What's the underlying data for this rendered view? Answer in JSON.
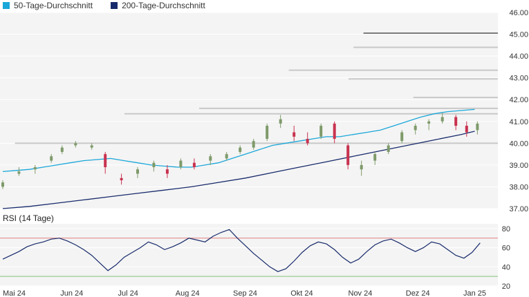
{
  "legend": {
    "ma50_label": "50-Tage-Durchschnitt",
    "ma200_label": "200-Tage-Durchschnitt"
  },
  "colors": {
    "ma50": "#1aa7d9",
    "ma200": "#172a6b",
    "up": "#7e9a6a",
    "down": "#c8324f",
    "rsi_line": "#172a6b",
    "rsi_upper": "#e07b7b",
    "rsi_lower": "#86c27a",
    "resistance": "#c8c8c8",
    "top_line": "#000000"
  },
  "rsi": {
    "title": "RSI (14 Tage)"
  },
  "chart_data": {
    "type": "candlestick",
    "price_axis": {
      "ylim": [
        37.0,
        46.0
      ],
      "ticks": [
        "37.00",
        "38.00",
        "39.00",
        "40.00",
        "41.00",
        "42.00",
        "43.00",
        "44.00",
        "45.00",
        "46.00"
      ]
    },
    "rsi_axis": {
      "ylim": [
        20,
        85
      ],
      "ticks": [
        "20",
        "40",
        "60",
        "80"
      ],
      "upper_level": 70,
      "lower_level": 30
    },
    "x_labels": [
      "Mai 24",
      "Jun 24",
      "Jul 24",
      "Aug 24",
      "Sep 24",
      "Okt 24",
      "Nov 24",
      "Dez 24",
      "Jan 25"
    ],
    "n_days": 180,
    "candles": [
      [
        0,
        38.0,
        38.3,
        37.9,
        38.2
      ],
      [
        6,
        38.6,
        38.9,
        38.5,
        38.7
      ],
      [
        12,
        38.8,
        39.0,
        38.6,
        38.9
      ],
      [
        18,
        39.2,
        39.5,
        39.1,
        39.4
      ],
      [
        22,
        39.6,
        39.9,
        39.5,
        39.8
      ],
      [
        27,
        39.9,
        40.1,
        39.8,
        40.0
      ],
      [
        33,
        39.8,
        40.0,
        39.7,
        39.9
      ],
      [
        38,
        39.5,
        39.6,
        38.6,
        38.9
      ],
      [
        44,
        38.4,
        38.6,
        38.1,
        38.3
      ],
      [
        50,
        38.6,
        38.9,
        38.4,
        38.8
      ],
      [
        56,
        38.9,
        39.2,
        38.7,
        39.1
      ],
      [
        61,
        38.8,
        39.0,
        38.4,
        38.6
      ],
      [
        66,
        38.9,
        39.3,
        38.8,
        39.2
      ],
      [
        71,
        39.1,
        39.3,
        38.8,
        38.9
      ],
      [
        77,
        39.2,
        39.5,
        39.0,
        39.4
      ],
      [
        83,
        39.3,
        39.6,
        39.2,
        39.5
      ],
      [
        88,
        39.6,
        39.9,
        39.5,
        39.8
      ],
      [
        93,
        39.8,
        40.2,
        39.7,
        40.1
      ],
      [
        98,
        40.2,
        40.9,
        40.1,
        40.8
      ],
      [
        103,
        40.9,
        41.3,
        40.7,
        41.1
      ],
      [
        108,
        40.5,
        40.8,
        40.1,
        40.3
      ],
      [
        113,
        40.2,
        40.5,
        39.9,
        40.0
      ],
      [
        118,
        40.3,
        40.9,
        40.2,
        40.8
      ],
      [
        123,
        40.9,
        41.0,
        40.0,
        40.2
      ],
      [
        128,
        39.9,
        40.0,
        38.8,
        39.0
      ],
      [
        133,
        38.8,
        39.2,
        38.5,
        39.0
      ],
      [
        138,
        39.2,
        39.6,
        39.0,
        39.5
      ],
      [
        143,
        39.6,
        40.0,
        39.5,
        39.9
      ],
      [
        148,
        40.1,
        40.6,
        40.0,
        40.5
      ],
      [
        153,
        40.6,
        40.9,
        40.4,
        40.8
      ],
      [
        158,
        40.9,
        41.1,
        40.6,
        41.0
      ],
      [
        163,
        41.0,
        41.4,
        40.9,
        41.2
      ],
      [
        168,
        41.2,
        41.3,
        40.6,
        40.8
      ],
      [
        172,
        40.8,
        41.0,
        40.3,
        40.5
      ],
      [
        176,
        40.6,
        41.0,
        40.4,
        40.9
      ]
    ],
    "resistance_levels": [
      {
        "price": 40.0,
        "x_start": 0.03,
        "x_end": 1.0
      },
      {
        "price": 41.35,
        "x_start": 0.25,
        "x_end": 1.0
      },
      {
        "price": 41.6,
        "x_start": 0.4,
        "x_end": 1.0
      },
      {
        "price": 43.35,
        "x_start": 0.58,
        "x_end": 1.0
      },
      {
        "price": 42.95,
        "x_start": 0.7,
        "x_end": 1.0
      },
      {
        "price": 44.4,
        "x_start": 0.71,
        "x_end": 1.0
      },
      {
        "price": 42.1,
        "x_start": 0.83,
        "x_end": 1.0
      }
    ],
    "top_level": {
      "price": 45.05,
      "x_start": 0.73,
      "x_end": 1.0
    },
    "ma50": [
      [
        0,
        38.7
      ],
      [
        5,
        38.75
      ],
      [
        10,
        38.8
      ],
      [
        15,
        38.9
      ],
      [
        20,
        39.0
      ],
      [
        25,
        39.1
      ],
      [
        30,
        39.2
      ],
      [
        35,
        39.25
      ],
      [
        40,
        39.3
      ],
      [
        45,
        39.2
      ],
      [
        50,
        39.1
      ],
      [
        55,
        39.0
      ],
      [
        60,
        38.95
      ],
      [
        65,
        38.9
      ],
      [
        70,
        38.9
      ],
      [
        75,
        39.0
      ],
      [
        80,
        39.1
      ],
      [
        85,
        39.3
      ],
      [
        90,
        39.5
      ],
      [
        95,
        39.7
      ],
      [
        100,
        39.9
      ],
      [
        105,
        40.0
      ],
      [
        110,
        40.1
      ],
      [
        115,
        40.2
      ],
      [
        120,
        40.3
      ],
      [
        125,
        40.3
      ],
      [
        130,
        40.4
      ],
      [
        135,
        40.5
      ],
      [
        140,
        40.6
      ],
      [
        145,
        40.8
      ],
      [
        150,
        41.0
      ],
      [
        155,
        41.2
      ],
      [
        160,
        41.35
      ],
      [
        165,
        41.45
      ],
      [
        170,
        41.5
      ],
      [
        175,
        41.55
      ]
    ],
    "ma200": [
      [
        0,
        37.0
      ],
      [
        10,
        37.1
      ],
      [
        20,
        37.25
      ],
      [
        30,
        37.4
      ],
      [
        40,
        37.55
      ],
      [
        50,
        37.7
      ],
      [
        60,
        37.85
      ],
      [
        70,
        38.0
      ],
      [
        80,
        38.2
      ],
      [
        90,
        38.4
      ],
      [
        100,
        38.65
      ],
      [
        110,
        38.9
      ],
      [
        120,
        39.15
      ],
      [
        130,
        39.4
      ],
      [
        140,
        39.65
      ],
      [
        150,
        39.9
      ],
      [
        160,
        40.15
      ],
      [
        170,
        40.4
      ],
      [
        175,
        40.55
      ]
    ],
    "rsi_values": [
      [
        0,
        48
      ],
      [
        3,
        52
      ],
      [
        6,
        56
      ],
      [
        9,
        61
      ],
      [
        12,
        64
      ],
      [
        15,
        66
      ],
      [
        18,
        69
      ],
      [
        21,
        70
      ],
      [
        24,
        67
      ],
      [
        27,
        63
      ],
      [
        30,
        58
      ],
      [
        33,
        52
      ],
      [
        36,
        44
      ],
      [
        39,
        36
      ],
      [
        42,
        42
      ],
      [
        45,
        50
      ],
      [
        48,
        55
      ],
      [
        51,
        60
      ],
      [
        54,
        66
      ],
      [
        57,
        63
      ],
      [
        60,
        58
      ],
      [
        63,
        61
      ],
      [
        66,
        65
      ],
      [
        69,
        70
      ],
      [
        72,
        68
      ],
      [
        75,
        66
      ],
      [
        78,
        72
      ],
      [
        81,
        76
      ],
      [
        84,
        79
      ],
      [
        87,
        70
      ],
      [
        90,
        62
      ],
      [
        93,
        54
      ],
      [
        96,
        47
      ],
      [
        99,
        40
      ],
      [
        102,
        35
      ],
      [
        105,
        38
      ],
      [
        108,
        46
      ],
      [
        111,
        55
      ],
      [
        114,
        62
      ],
      [
        117,
        66
      ],
      [
        120,
        64
      ],
      [
        123,
        58
      ],
      [
        126,
        50
      ],
      [
        129,
        44
      ],
      [
        132,
        48
      ],
      [
        135,
        56
      ],
      [
        138,
        63
      ],
      [
        141,
        67
      ],
      [
        144,
        69
      ],
      [
        147,
        65
      ],
      [
        150,
        60
      ],
      [
        153,
        56
      ],
      [
        156,
        60
      ],
      [
        159,
        66
      ],
      [
        162,
        64
      ],
      [
        165,
        58
      ],
      [
        168,
        52
      ],
      [
        171,
        49
      ],
      [
        174,
        55
      ],
      [
        177,
        65
      ]
    ]
  }
}
